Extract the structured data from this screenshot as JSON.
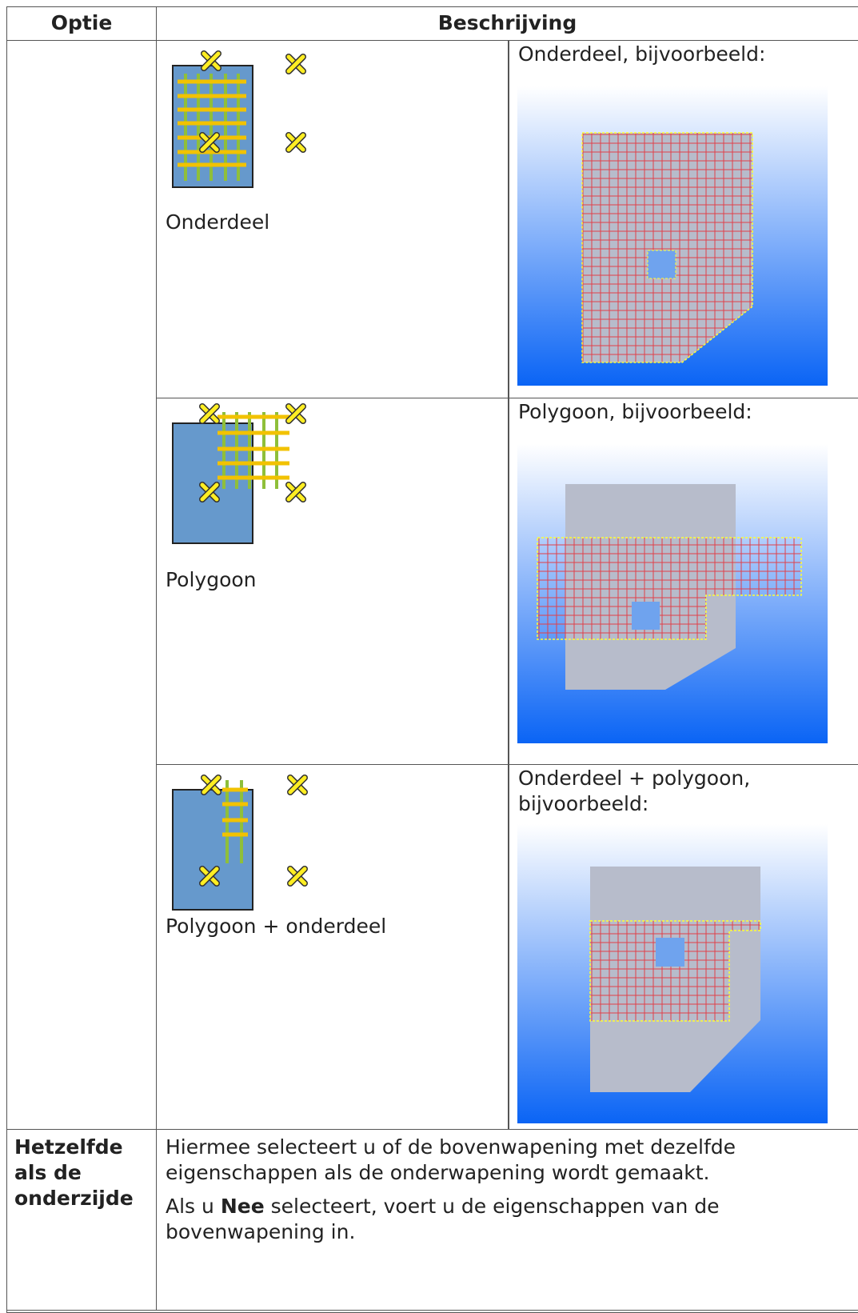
{
  "table": {
    "header": [
      "Optie",
      "Beschrijving"
    ],
    "options": [
      {
        "label": "Onderdeel",
        "example": "Onderdeel, bijvoorbeeld:"
      },
      {
        "label": "Polygoon",
        "example": "Polygoon, bijvoorbeeld:"
      },
      {
        "label": "Polygoon + onderdeel",
        "example": "Onderdeel + polygoon, bijvoorbeeld:"
      }
    ],
    "last_row": {
      "option": "Hetzelfde als de onderzijde",
      "paragraph_1": "Hiermee selecteert u of de bovenwapening met dezelfde eigenschappen als de onderwapening wordt gemaakt.",
      "paragraph_2": [
        "Als u ",
        "Nee",
        " selecteert, voert u de eigenschappen van de bovenwapening in."
      ]
    }
  }
}
